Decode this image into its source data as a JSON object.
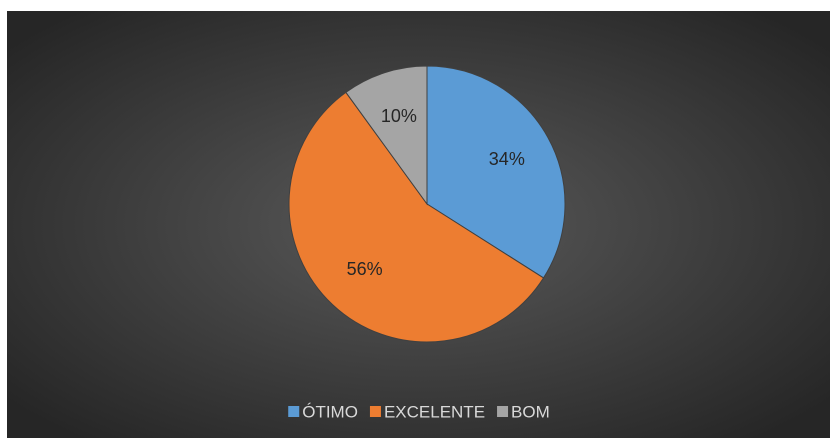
{
  "chart_data": {
    "type": "pie",
    "categories": [
      "ÓTIMO",
      "EXCELENTE",
      "BOM"
    ],
    "values": [
      34,
      56,
      10
    ],
    "value_labels": [
      "34%",
      "56%",
      "10%"
    ],
    "colors": [
      "#5b9bd5",
      "#ed7d31",
      "#a5a5a5"
    ],
    "legend": "bottom"
  }
}
